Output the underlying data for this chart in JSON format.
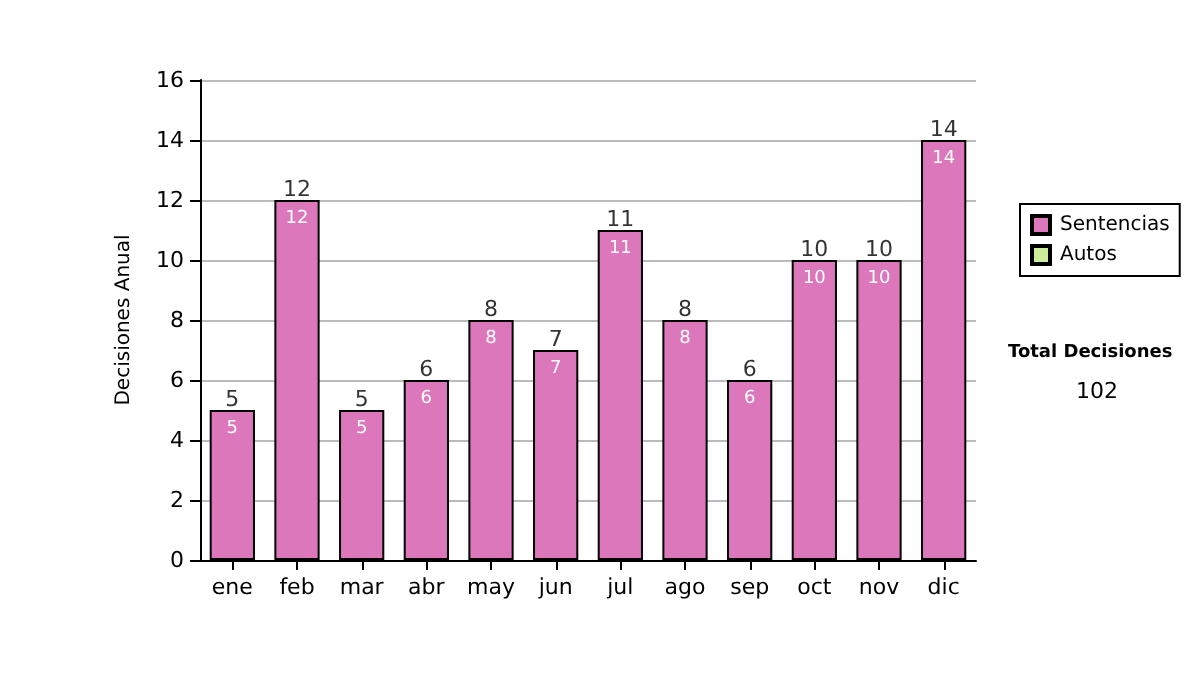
{
  "chart_data": {
    "type": "bar",
    "stacked": true,
    "ylabel": "Decisiones Anual",
    "categories": [
      "ene",
      "feb",
      "mar",
      "abr",
      "may",
      "jun",
      "jul",
      "ago",
      "sep",
      "oct",
      "nov",
      "dic"
    ],
    "series": [
      {
        "name": "Sentencias",
        "color": "#dd77bb",
        "values": [
          5,
          12,
          5,
          6,
          8,
          7,
          11,
          8,
          6,
          10,
          10,
          14
        ],
        "value_labels": [
          "5",
          "12",
          "5",
          "6",
          "8",
          "7",
          "11",
          "8",
          "6",
          "10",
          "10",
          "14"
        ]
      },
      {
        "name": "Autos",
        "color": "#ccee99",
        "values": [
          0,
          0,
          0,
          0,
          0,
          0,
          0,
          0,
          0,
          0,
          0,
          0
        ]
      }
    ],
    "totals": [
      "5",
      "12",
      "5",
      "6",
      "8",
      "7",
      "11",
      "8",
      "6",
      "10",
      "10",
      "14"
    ],
    "ylim": [
      0,
      16
    ],
    "yticks": [
      0,
      2,
      4,
      6,
      8,
      10,
      12,
      14,
      16
    ],
    "grid": "y",
    "legend": "right",
    "annotations": [
      "Total Decisiones",
      "102"
    ]
  }
}
